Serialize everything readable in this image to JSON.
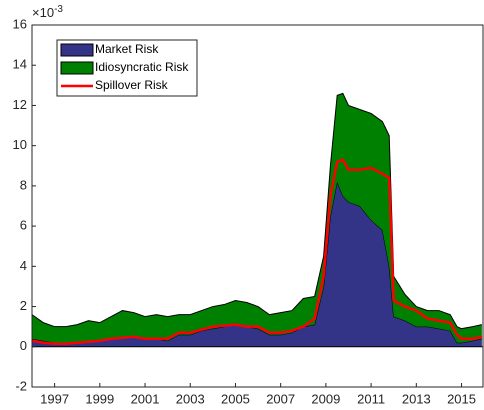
{
  "chart_data": {
    "type": "stacked_area_line",
    "y_multiplier": {
      "base": "×10",
      "exponent": "-3"
    },
    "x": [
      1996,
      1996.5,
      1997,
      1997.5,
      1998,
      1998.5,
      1999,
      1999.5,
      2000,
      2000.5,
      2001,
      2001.5,
      2002,
      2002.5,
      2003,
      2003.5,
      2004,
      2004.5,
      2005,
      2005.5,
      2006,
      2006.5,
      2007,
      2007.5,
      2008,
      2008.5,
      2008.9,
      2009.2,
      2009.5,
      2009.75,
      2010,
      2010.5,
      2011,
      2011.5,
      2011.8,
      2012,
      2012.5,
      2013,
      2013.5,
      2014,
      2014.5,
      2014.8,
      2015,
      2015.5,
      2015.9
    ],
    "series": [
      {
        "name": "Market Risk",
        "color": "#333388",
        "kind": "area",
        "values": [
          0.4,
          0.3,
          0.2,
          0.2,
          0.25,
          0.3,
          0.3,
          0.4,
          0.5,
          0.5,
          0.4,
          0.4,
          0.3,
          0.6,
          0.6,
          0.8,
          0.9,
          1.0,
          1.1,
          1.0,
          0.9,
          0.6,
          0.6,
          0.7,
          1.0,
          1.1,
          3.0,
          6.5,
          8.2,
          7.5,
          7.2,
          7.0,
          6.3,
          5.8,
          4.0,
          1.5,
          1.3,
          1.0,
          1.0,
          0.9,
          0.8,
          0.2,
          0.2,
          0.3,
          0.4
        ]
      },
      {
        "name": "Idiosyncratic Risk",
        "color": "#008000",
        "kind": "area",
        "values": [
          1.2,
          0.9,
          0.8,
          0.8,
          0.85,
          1.0,
          0.9,
          1.1,
          1.3,
          1.2,
          1.1,
          1.2,
          1.2,
          1.0,
          1.0,
          1.0,
          1.1,
          1.1,
          1.2,
          1.2,
          1.1,
          1.0,
          1.1,
          1.1,
          1.4,
          1.4,
          1.5,
          2.5,
          4.3,
          5.1,
          4.8,
          4.8,
          5.3,
          5.4,
          6.5,
          2.0,
          1.3,
          1.0,
          0.8,
          0.9,
          0.8,
          0.8,
          0.7,
          0.7,
          0.7
        ]
      },
      {
        "name": "Spillover Risk",
        "color": "#ff0000",
        "kind": "line",
        "values": [
          0.3,
          0.2,
          0.15,
          0.15,
          0.2,
          0.25,
          0.3,
          0.4,
          0.45,
          0.5,
          0.4,
          0.4,
          0.4,
          0.7,
          0.7,
          0.85,
          1.0,
          1.05,
          1.1,
          1.0,
          1.0,
          0.7,
          0.7,
          0.8,
          1.0,
          1.4,
          3.5,
          7.5,
          9.2,
          9.3,
          8.8,
          8.8,
          8.9,
          8.6,
          8.4,
          2.3,
          2.0,
          1.8,
          1.4,
          1.3,
          1.2,
          0.6,
          0.4,
          0.4,
          0.5
        ]
      }
    ],
    "xlim": [
      1996,
      2015.95
    ],
    "xticks": [
      1997,
      1999,
      2001,
      2003,
      2005,
      2007,
      2009,
      2011,
      2013,
      2015
    ],
    "ylim": [
      -2,
      16
    ],
    "yticks": [
      -2,
      0,
      2,
      4,
      6,
      8,
      10,
      12,
      14,
      16
    ],
    "legend": "northwest"
  }
}
